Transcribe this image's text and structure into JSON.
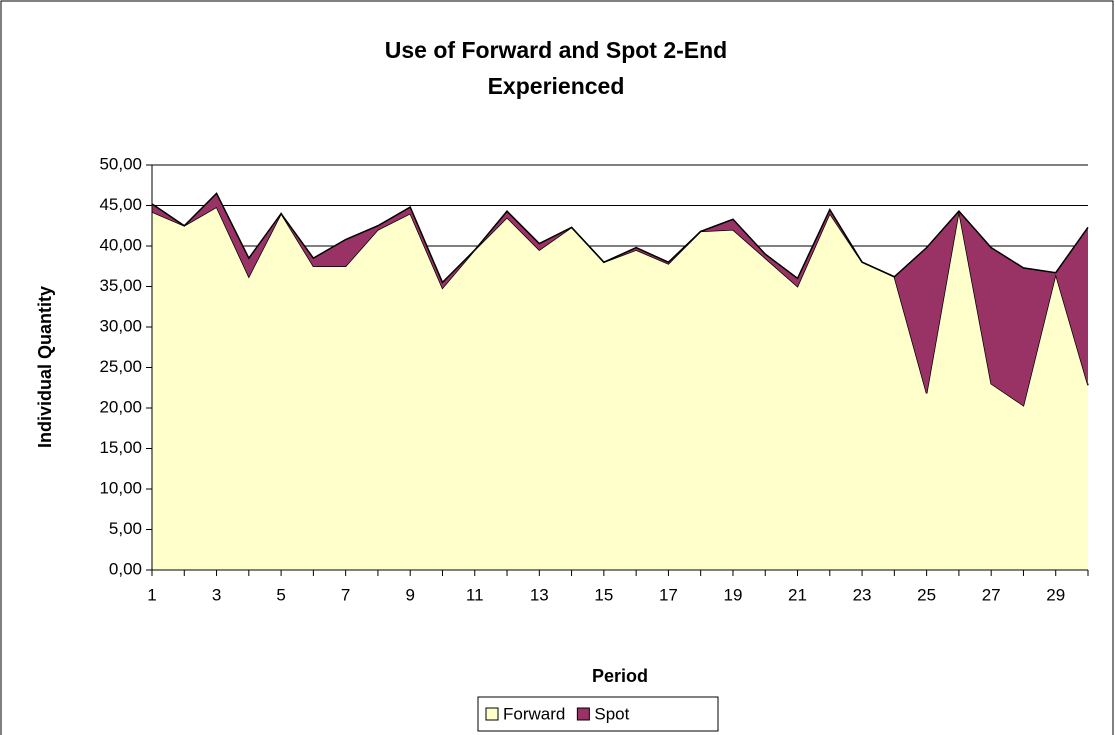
{
  "chart_data": {
    "type": "area",
    "stacked": true,
    "title": "Use of Forward and Spot 2-End",
    "subtitle": "Experienced",
    "x_label": "Period",
    "y_label": "Individual Quantity",
    "categories": [
      1,
      null,
      3,
      null,
      5,
      null,
      7,
      null,
      9,
      null,
      11,
      null,
      13,
      null,
      15,
      null,
      17,
      null,
      19,
      null,
      21,
      null,
      23,
      null,
      25,
      null,
      27,
      null,
      29,
      null
    ],
    "series": [
      {
        "name": "Forward",
        "color": "#ffffcc",
        "values": [
          44.2,
          42.5,
          44.8,
          36.2,
          44,
          37.5,
          37.5,
          42,
          44,
          34.8,
          39.5,
          43.5,
          39.5,
          42.3,
          38,
          39.5,
          37.8,
          41.8,
          42,
          38.5,
          35,
          44,
          38,
          36.2,
          21.8,
          44.3,
          23,
          20.3,
          36.5,
          22.8
        ]
      },
      {
        "name": "Spot",
        "color": "#993366",
        "values": [
          1,
          0,
          1.7,
          2.3,
          0,
          1,
          3.3,
          0.5,
          0.8,
          0.7,
          0,
          0.8,
          0.8,
          0,
          0,
          0.3,
          0.2,
          0,
          1.3,
          0.5,
          1,
          0.5,
          0,
          0,
          18,
          0,
          16.8,
          17,
          0.2,
          19.5
        ]
      }
    ],
    "ylim": [
      0,
      50
    ],
    "yticks": [
      {
        "value": 0,
        "label": "0,00"
      },
      {
        "value": 5,
        "label": "5,00"
      },
      {
        "value": 10,
        "label": "10,00"
      },
      {
        "value": 15,
        "label": "15,00"
      },
      {
        "value": 20,
        "label": "20,00"
      },
      {
        "value": 25,
        "label": "25,00"
      },
      {
        "value": 30,
        "label": "30,00"
      },
      {
        "value": 35,
        "label": "35,00"
      },
      {
        "value": 40,
        "label": "40,00"
      },
      {
        "value": 45,
        "label": "45,00"
      },
      {
        "value": 50,
        "label": "50,00"
      }
    ],
    "grid": true,
    "legend": "bottom"
  }
}
